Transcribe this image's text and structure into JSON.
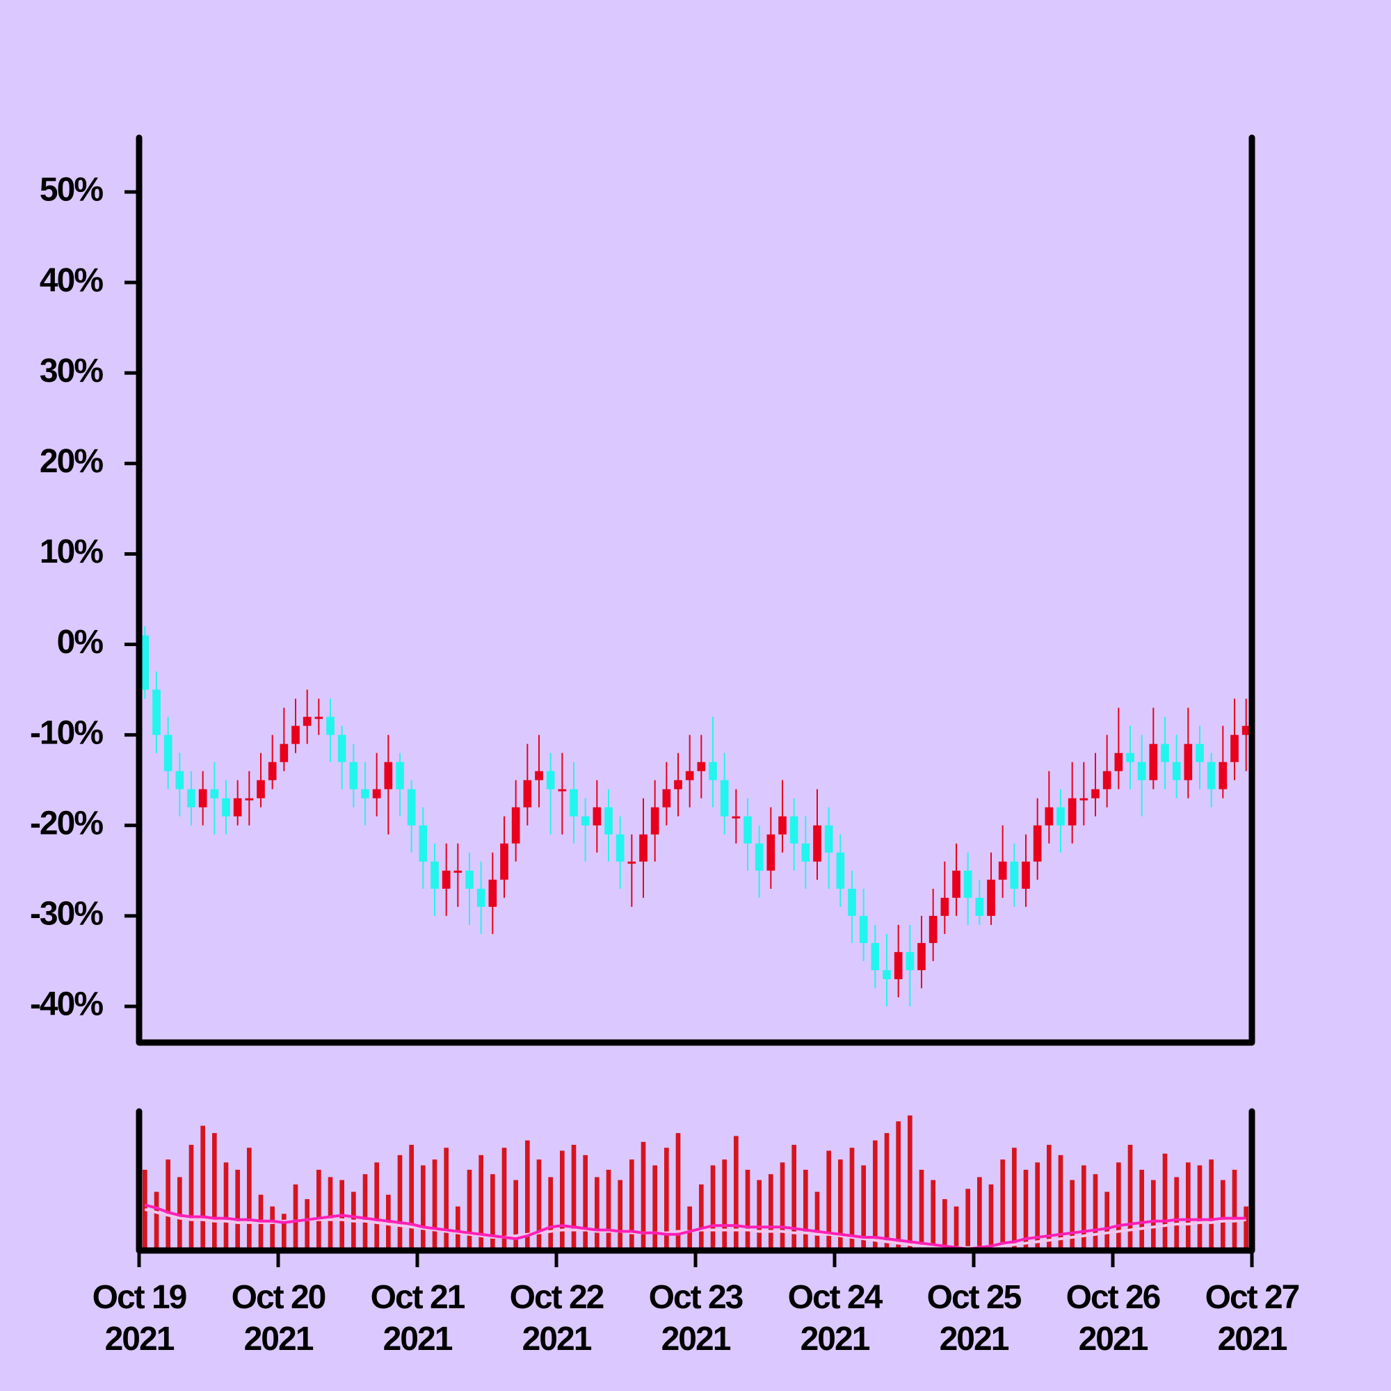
{
  "chart_data": {
    "type": "candlestick",
    "up_color": "#e8001c",
    "down_color": "#22f5ee",
    "ylim": [
      -44,
      56
    ],
    "yticks": [
      {
        "value": -40,
        "label": "-40%"
      },
      {
        "value": -30,
        "label": "-30%"
      },
      {
        "value": -20,
        "label": "-20%"
      },
      {
        "value": -10,
        "label": "-10%"
      },
      {
        "value": 0,
        "label": "0%"
      },
      {
        "value": 10,
        "label": "10%"
      },
      {
        "value": 20,
        "label": "20%"
      },
      {
        "value": 30,
        "label": "30%"
      },
      {
        "value": 40,
        "label": "40%"
      },
      {
        "value": 50,
        "label": "50%"
      }
    ],
    "xlim": [
      0,
      96
    ],
    "xticks": [
      {
        "value": 0,
        "label": "Oct 19\n2021"
      },
      {
        "value": 12,
        "label": "Oct 20\n2021"
      },
      {
        "value": 24,
        "label": "Oct 21\n2021"
      },
      {
        "value": 36,
        "label": "Oct 22\n2021"
      },
      {
        "value": 48,
        "label": "Oct 23\n2021"
      },
      {
        "value": 60,
        "label": "Oct 24\n2021"
      },
      {
        "value": 72,
        "label": "Oct 25\n2021"
      },
      {
        "value": 84,
        "label": "Oct 26\n2021"
      },
      {
        "value": 96,
        "label": "Oct 27\n2021"
      }
    ],
    "open": [
      1,
      -5,
      -10,
      -14,
      -16,
      -18,
      -16,
      -17,
      -19,
      -17,
      -17,
      -15,
      -13,
      -11,
      -9,
      -8,
      -8,
      -10,
      -13,
      -16,
      -17,
      -16,
      -13,
      -16,
      -20,
      -24,
      -27,
      -25,
      -25,
      -27,
      -29,
      -26,
      -22,
      -18,
      -15,
      -14,
      -16,
      -16,
      -19,
      -20,
      -18,
      -21,
      -24,
      -24,
      -21,
      -18,
      -16,
      -15,
      -14,
      -13,
      -15,
      -19,
      -19,
      -22,
      -25,
      -21,
      -19,
      -22,
      -24,
      -20,
      -23,
      -27,
      -30,
      -33,
      -36,
      -37,
      -34,
      -36,
      -33,
      -30,
      -28,
      -25,
      -28,
      -30,
      -26,
      -24,
      -27,
      -24,
      -20,
      -18,
      -20,
      -17,
      -17,
      -16,
      -14,
      -12,
      -13,
      -15,
      -11,
      -13,
      -15,
      -11,
      -13,
      -16,
      -13,
      -10
    ],
    "high": [
      2,
      -3,
      -8,
      -12,
      -14,
      -14,
      -13,
      -15,
      -15,
      -14,
      -12,
      -10,
      -7,
      -6,
      -5,
      -6,
      -6,
      -9,
      -11,
      -13,
      -12,
      -10,
      -12,
      -15,
      -18,
      -22,
      -22,
      -22,
      -23,
      -24,
      -23,
      -19,
      -15,
      -11,
      -10,
      -12,
      -12,
      -13,
      -17,
      -15,
      -16,
      -19,
      -21,
      -17,
      -15,
      -13,
      -12,
      -10,
      -10,
      -8,
      -12,
      -16,
      -17,
      -20,
      -18,
      -15,
      -17,
      -19,
      -16,
      -18,
      -21,
      -25,
      -27,
      -31,
      -32,
      -31,
      -31,
      -30,
      -27,
      -24,
      -22,
      -23,
      -26,
      -23,
      -20,
      -22,
      -21,
      -17,
      -14,
      -16,
      -13,
      -13,
      -12,
      -10,
      -7,
      -9,
      -10,
      -7,
      -8,
      -10,
      -7,
      -9,
      -12,
      -9,
      -6,
      -6
    ],
    "low": [
      -6,
      -12,
      -16,
      -19,
      -20,
      -20,
      -21,
      -21,
      -20,
      -20,
      -18,
      -16,
      -14,
      -12,
      -11,
      -10,
      -13,
      -16,
      -18,
      -20,
      -19,
      -21,
      -19,
      -23,
      -27,
      -30,
      -30,
      -29,
      -31,
      -32,
      -32,
      -28,
      -24,
      -20,
      -18,
      -21,
      -21,
      -22,
      -24,
      -23,
      -24,
      -27,
      -29,
      -28,
      -24,
      -20,
      -19,
      -18,
      -17,
      -18,
      -21,
      -22,
      -25,
      -28,
      -27,
      -23,
      -25,
      -27,
      -26,
      -27,
      -29,
      -33,
      -35,
      -38,
      -40,
      -39,
      -40,
      -38,
      -35,
      -32,
      -30,
      -31,
      -31,
      -31,
      -28,
      -29,
      -29,
      -26,
      -22,
      -23,
      -22,
      -20,
      -19,
      -18,
      -16,
      -16,
      -19,
      -16,
      -16,
      -17,
      -17,
      -16,
      -18,
      -17,
      -15,
      -14
    ],
    "close": [
      -5,
      -10,
      -14,
      -16,
      -18,
      -16,
      -17,
      -19,
      -17,
      -17,
      -15,
      -13,
      -11,
      -9,
      -8,
      -8,
      -10,
      -13,
      -16,
      -17,
      -16,
      -13,
      -16,
      -20,
      -24,
      -27,
      -25,
      -25,
      -27,
      -29,
      -26,
      -22,
      -18,
      -15,
      -14,
      -16,
      -16,
      -19,
      -20,
      -18,
      -21,
      -24,
      -24,
      -21,
      -18,
      -16,
      -15,
      -14,
      -13,
      -15,
      -19,
      -19,
      -22,
      -25,
      -21,
      -19,
      -22,
      -24,
      -20,
      -23,
      -27,
      -30,
      -33,
      -36,
      -37,
      -34,
      -36,
      -33,
      -30,
      -28,
      -25,
      -28,
      -30,
      -26,
      -24,
      -27,
      -24,
      -20,
      -18,
      -20,
      -17,
      -17,
      -16,
      -14,
      -12,
      -13,
      -15,
      -11,
      -13,
      -15,
      -11,
      -13,
      -16,
      -13,
      -10,
      -9
    ],
    "volume": {
      "color": "#d7141e",
      "values": [
        55,
        40,
        62,
        50,
        72,
        85,
        80,
        60,
        55,
        70,
        38,
        30,
        25,
        45,
        35,
        55,
        50,
        48,
        40,
        52,
        60,
        38,
        65,
        72,
        58,
        62,
        70,
        30,
        55,
        65,
        52,
        70,
        48,
        75,
        62,
        50,
        68,
        72,
        65,
        50,
        55,
        48,
        62,
        74,
        58,
        70,
        80,
        30,
        45,
        58,
        62,
        78,
        55,
        48,
        52,
        60,
        72,
        55,
        40,
        68,
        62,
        70,
        58,
        75,
        80,
        88,
        92,
        55,
        48,
        35,
        30,
        42,
        50,
        45,
        62,
        70,
        55,
        60,
        72,
        65,
        48,
        58,
        52,
        40,
        60,
        72,
        55,
        48,
        66,
        50,
        60,
        58,
        62,
        48,
        55,
        30
      ],
      "series": [
        {
          "color": "#f0c8f0",
          "values": [
            28,
            26,
            24,
            22,
            21,
            21,
            20,
            20,
            19,
            19,
            19,
            19,
            20,
            20,
            21,
            21,
            21,
            21,
            20,
            20,
            19,
            18,
            17,
            16,
            15,
            14,
            13,
            12,
            11,
            10,
            9,
            9,
            10,
            11,
            12,
            13,
            14,
            14,
            14,
            13,
            13,
            13,
            12,
            12,
            12,
            12,
            13,
            13,
            14,
            14,
            14,
            14,
            14,
            13,
            13,
            13,
            12,
            12,
            11,
            11,
            10,
            9,
            8,
            7,
            6,
            5,
            4,
            3,
            3,
            2,
            2,
            2,
            2,
            3,
            3,
            4,
            5,
            6,
            7,
            8,
            9,
            10,
            11,
            12,
            13,
            14,
            15,
            16,
            17,
            18,
            18,
            19,
            19,
            20,
            20,
            21
          ]
        },
        {
          "color": "#ff1fb4",
          "values": [
            31,
            29,
            26,
            24,
            23,
            23,
            22,
            22,
            21,
            21,
            20,
            20,
            19,
            20,
            21,
            22,
            23,
            24,
            23,
            22,
            21,
            20,
            19,
            18,
            16,
            15,
            14,
            13,
            12,
            11,
            10,
            9,
            8,
            10,
            13,
            16,
            17,
            16,
            15,
            14,
            14,
            13,
            13,
            12,
            12,
            11,
            11,
            13,
            15,
            17,
            17,
            17,
            16,
            16,
            16,
            16,
            15,
            14,
            13,
            12,
            11,
            10,
            9,
            9,
            8,
            7,
            6,
            5,
            4,
            3,
            2,
            1,
            2,
            3,
            5,
            6,
            8,
            9,
            10,
            11,
            12,
            13,
            14,
            15,
            17,
            18,
            19,
            20,
            20,
            21,
            21,
            21,
            21,
            22,
            22,
            22
          ]
        }
      ]
    }
  }
}
